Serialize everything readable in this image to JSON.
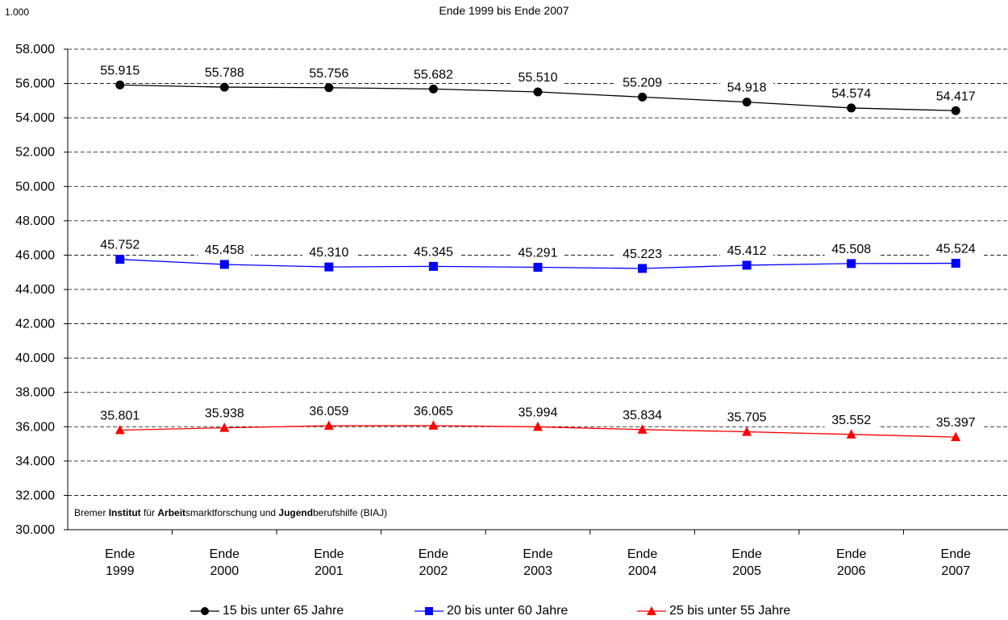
{
  "header": {
    "unit": "1.000",
    "title": "Ende 1999 bis Ende 2007"
  },
  "source": {
    "prefix1": "Bremer ",
    "bold1": "Institut",
    "mid1": " für ",
    "bold2": "Arbeit",
    "mid2": "smarktforschung und ",
    "bold3": "Jugend",
    "suffix": "berufshilfe (BIAJ)"
  },
  "chart_data": {
    "type": "line",
    "title": "Ende 1999 bis Ende 2007",
    "unit_label": "1.000",
    "categories": [
      [
        "Ende",
        "1999"
      ],
      [
        "Ende",
        "2000"
      ],
      [
        "Ende",
        "2001"
      ],
      [
        "Ende",
        "2002"
      ],
      [
        "Ende",
        "2003"
      ],
      [
        "Ende",
        "2004"
      ],
      [
        "Ende",
        "2005"
      ],
      [
        "Ende",
        "2006"
      ],
      [
        "Ende",
        "2007"
      ]
    ],
    "ylim": [
      30000,
      58000
    ],
    "y_ticks": [
      30000,
      32000,
      34000,
      36000,
      38000,
      40000,
      42000,
      44000,
      46000,
      48000,
      50000,
      52000,
      54000,
      56000,
      58000
    ],
    "y_tick_labels": [
      "30.000",
      "32.000",
      "34.000",
      "36.000",
      "38.000",
      "40.000",
      "42.000",
      "44.000",
      "46.000",
      "48.000",
      "50.000",
      "52.000",
      "54.000",
      "56.000",
      "58.000"
    ],
    "grid": "horizontal-dashed",
    "legend_position": "bottom",
    "series": [
      {
        "name": "15 bis unter 65 Jahre",
        "color": "#000000",
        "marker": "circle",
        "values": [
          55915,
          55788,
          55756,
          55682,
          55510,
          55209,
          54918,
          54574,
          54417
        ],
        "labels": [
          "55.915",
          "55.788",
          "55.756",
          "55.682",
          "55.510",
          "55.209",
          "54.918",
          "54.574",
          "54.417"
        ]
      },
      {
        "name": "20 bis unter 60 Jahre",
        "color": "#0000ff",
        "marker": "square",
        "values": [
          45752,
          45458,
          45310,
          45345,
          45291,
          45223,
          45412,
          45508,
          45524
        ],
        "labels": [
          "45.752",
          "45.458",
          "45.310",
          "45.345",
          "45.291",
          "45.223",
          "45.412",
          "45.508",
          "45.524"
        ]
      },
      {
        "name": "25 bis unter 55 Jahre",
        "color": "#ff0000",
        "marker": "triangle",
        "values": [
          35801,
          35938,
          36059,
          36065,
          35994,
          35834,
          35705,
          35552,
          35397
        ],
        "labels": [
          "35.801",
          "35.938",
          "36.059",
          "36.065",
          "35.994",
          "35.834",
          "35.705",
          "35.552",
          "35.397"
        ]
      }
    ]
  }
}
